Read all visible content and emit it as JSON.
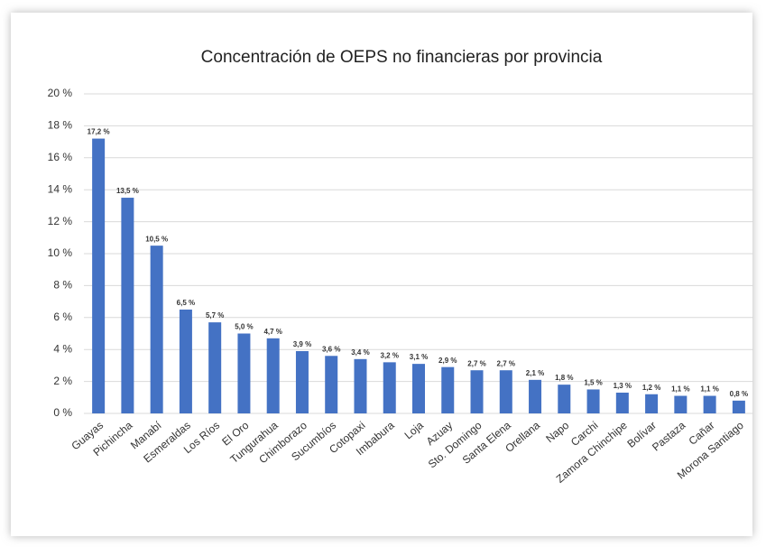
{
  "chart_data": {
    "type": "bar",
    "title": "Concentración de OEPS no financieras por provincia",
    "categories": [
      "Guayas",
      "Pichincha",
      "Manabí",
      "Esmeraldas",
      "Los Ríos",
      "El Oro",
      "Tungurahua",
      "Chimborazo",
      "Sucumbíos",
      "Cotopaxi",
      "Imbabura",
      "Loja",
      "Azuay",
      "Sto. Domingo",
      "Santa Elena",
      "Orellana",
      "Napo",
      "Carchi",
      "Zamora Chinchipe",
      "Bolívar",
      "Pastaza",
      "Cañar",
      "Morona Santiago"
    ],
    "values": [
      17.2,
      13.5,
      10.5,
      6.5,
      5.7,
      5.0,
      4.7,
      3.9,
      3.6,
      3.4,
      3.2,
      3.1,
      2.9,
      2.7,
      2.7,
      2.1,
      1.8,
      1.5,
      1.3,
      1.2,
      1.1,
      1.1,
      0.8
    ],
    "value_labels": [
      "17,2 %",
      "13,5 %",
      "10,5 %",
      "6,5 %",
      "5,7 %",
      "5,0 %",
      "4,7 %",
      "3,9 %",
      "3,6 %",
      "3,4 %",
      "3,2 %",
      "3,1 %",
      "2,9 %",
      "2,7 %",
      "2,7 %",
      "2,1 %",
      "1,8 %",
      "1,5 %",
      "1,3 %",
      "1,2 %",
      "1,1 %",
      "1,1 %",
      "0,8 %"
    ],
    "color": "#4472c4",
    "ylim": [
      0,
      20
    ],
    "yticks": [
      {
        "value": 0,
        "label": "0 %"
      },
      {
        "value": 2,
        "label": "2 %"
      },
      {
        "value": 4,
        "label": "4 %"
      },
      {
        "value": 6,
        "label": "6 %"
      },
      {
        "value": 8,
        "label": "8 %"
      },
      {
        "value": 10,
        "label": "10 %"
      },
      {
        "value": 12,
        "label": "12 %"
      },
      {
        "value": 14,
        "label": "14 %"
      },
      {
        "value": 16,
        "label": "16 %"
      },
      {
        "value": 18,
        "label": "18 %"
      },
      {
        "value": 20,
        "label": "20 %"
      }
    ],
    "grid": true
  }
}
